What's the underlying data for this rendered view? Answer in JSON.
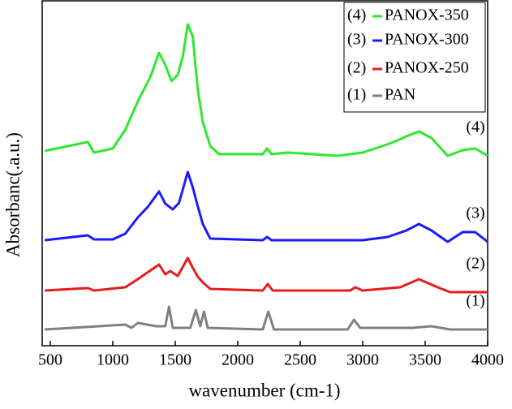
{
  "chart_data": {
    "type": "line",
    "x_label": "wavenumber (cm-1)",
    "y_label": "Absorbanc(.a.u.)",
    "xlim": [
      435,
      4000
    ],
    "xticks": [
      500,
      1000,
      1500,
      2000,
      2500,
      3000,
      3500,
      4000
    ],
    "ylim": [
      0,
      426
    ],
    "series": [
      {
        "name": "PANOX-350",
        "label": "(4)",
        "color": "#2ee82e",
        "x": [
          455,
          800,
          850,
          1000,
          1100,
          1200,
          1250,
          1300,
          1370,
          1420,
          1470,
          1520,
          1560,
          1600,
          1640,
          1680,
          1720,
          1780,
          1850,
          2200,
          2235,
          2270,
          2400,
          2800,
          3000,
          3100,
          3250,
          3350,
          3450,
          3550,
          3680,
          3800,
          3900,
          4000
        ],
        "values": [
          240,
          251,
          238,
          243,
          266,
          301,
          316,
          331,
          361,
          346,
          326,
          334,
          356,
          396,
          381,
          316,
          276,
          246,
          236,
          236,
          243,
          236,
          238,
          234,
          238,
          243,
          251,
          258,
          264,
          256,
          234,
          241,
          243,
          234
        ]
      },
      {
        "name": "PANOX-300",
        "label": "(3)",
        "color": "#1a1aff",
        "x": [
          455,
          800,
          850,
          1000,
          1100,
          1200,
          1280,
          1370,
          1420,
          1480,
          1530,
          1600,
          1640,
          1680,
          1720,
          1780,
          2200,
          2235,
          2270,
          3000,
          3200,
          3350,
          3450,
          3550,
          3680,
          3800,
          3900,
          4000
        ],
        "values": [
          130,
          136,
          131,
          131,
          138,
          158,
          171,
          190,
          175,
          168,
          176,
          214,
          195,
          172,
          150,
          132,
          130,
          134,
          130,
          130,
          134,
          142,
          150,
          142,
          128,
          140,
          140,
          128
        ]
      },
      {
        "name": "PANOX-250",
        "label": "(2)",
        "color": "#e81c1c",
        "x": [
          455,
          800,
          850,
          1100,
          1200,
          1370,
          1420,
          1460,
          1520,
          1600,
          1640,
          1680,
          1720,
          1780,
          2200,
          2240,
          2280,
          2900,
          2940,
          3000,
          3300,
          3450,
          3600,
          3700,
          4000
        ],
        "values": [
          68,
          71,
          68,
          72,
          82,
          100,
          88,
          92,
          86,
          108,
          96,
          85,
          78,
          70,
          68,
          76,
          68,
          68,
          72,
          68,
          72,
          82,
          72,
          66,
          66
        ]
      },
      {
        "name": "PAN",
        "label": "(1)",
        "color": "#808080",
        "x": [
          455,
          1100,
          1150,
          1200,
          1350,
          1420,
          1450,
          1480,
          1620,
          1665,
          1700,
          1730,
          1760,
          2200,
          2245,
          2290,
          2880,
          2930,
          2980,
          3400,
          3550,
          3700,
          4000
        ],
        "values": [
          20,
          26,
          22,
          28,
          24,
          24,
          48,
          22,
          22,
          44,
          24,
          42,
          22,
          20,
          42,
          20,
          20,
          32,
          22,
          22,
          24,
          20,
          20
        ]
      }
    ]
  }
}
